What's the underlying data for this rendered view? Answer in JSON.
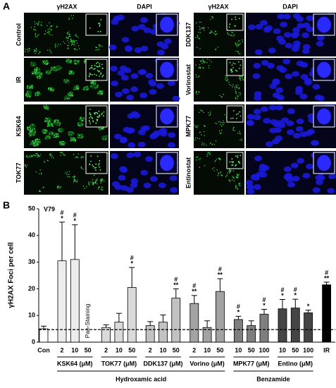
{
  "panel_a": {
    "label": "A",
    "columns": [
      "γH2AX",
      "DAPI",
      "γH2AX",
      "DAPI"
    ],
    "rows_left": [
      "Control",
      "IR",
      "KSK64",
      "TOK77"
    ],
    "rows_right": [
      "DDK137",
      "Vorinostat",
      "MPK77",
      "Entinostat"
    ]
  },
  "chart_data": {
    "type": "bar",
    "label": "B",
    "subtitle": "V79",
    "ylabel": "γH2AX Foci per cell",
    "ylim": [
      0,
      50
    ],
    "yticks": [
      0,
      10,
      20,
      30,
      40,
      50
    ],
    "reference_line": 4.7,
    "sections": [
      {
        "label": null,
        "groups": [
          {
            "name": null,
            "color": "#ffffff",
            "categories": [
              "Con"
            ],
            "values": [
              5
            ],
            "errors": [
              1
            ],
            "annotations": [
              []
            ]
          }
        ]
      },
      {
        "label": "Hydroxamic acid",
        "groups": [
          {
            "name": "KSK64 (μM)",
            "color": "#ececec",
            "categories": [
              "2",
              "10",
              "50"
            ],
            "values": [
              30.5,
              31,
              null
            ],
            "errors": [
              14.5,
              13,
              null
            ],
            "annotations": [
              [
                "#",
                "*"
              ],
              [
                "#",
                "*"
              ],
              []
            ],
            "notes": [
              null,
              null,
              "Pan-Staining"
            ]
          },
          {
            "name": "TOK77 (μM)",
            "color": "#dadada",
            "categories": [
              "2",
              "10",
              "50"
            ],
            "values": [
              5.5,
              7.5,
              20.5
            ],
            "errors": [
              1,
              3.3,
              7.5
            ],
            "annotations": [
              [],
              [],
              [
                "#",
                "*"
              ]
            ]
          },
          {
            "name": "DDK137 (μM)",
            "color": "#c2c2c2",
            "categories": [
              "2",
              "10",
              "50"
            ],
            "values": [
              6.2,
              7.5,
              16.5
            ],
            "errors": [
              1.5,
              2.7,
              3.5
            ],
            "annotations": [
              [],
              [],
              [
                "#",
                "**"
              ]
            ]
          },
          {
            "name": "Vorino (μM)",
            "color": "#a3a3a3",
            "categories": [
              "2",
              "10",
              "50"
            ],
            "values": [
              14.5,
              5.5,
              19
            ],
            "errors": [
              3,
              2.5,
              4.8
            ],
            "annotations": [
              [
                "#",
                "**"
              ],
              [],
              [
                "#",
                "**"
              ]
            ]
          }
        ]
      },
      {
        "label": "Benzamide",
        "groups": [
          {
            "name": "MPK77 (μM)",
            "color": "#7f7f7f",
            "categories": [
              "10",
              "50",
              "100"
            ],
            "values": [
              8.5,
              6.2,
              10.5
            ],
            "errors": [
              1.2,
              1.8,
              1.8
            ],
            "annotations": [
              [
                "#",
                "*"
              ],
              [],
              [
                "#",
                "*"
              ]
            ]
          },
          {
            "name": "Entino (μM)",
            "color": "#454545",
            "categories": [
              "10",
              "50",
              "100"
            ],
            "values": [
              12.5,
              12.8,
              11
            ],
            "errors": [
              3.5,
              3.3,
              1
            ],
            "annotations": [
              [
                "#",
                "*"
              ],
              [
                "#",
                "*"
              ],
              [
                "*"
              ]
            ]
          }
        ]
      },
      {
        "label": null,
        "groups": [
          {
            "name": null,
            "color": "#000000",
            "categories": [
              "IR"
            ],
            "values": [
              21.5
            ],
            "errors": [
              1
            ],
            "annotations": [
              [
                "#",
                "**"
              ]
            ]
          }
        ]
      }
    ]
  }
}
